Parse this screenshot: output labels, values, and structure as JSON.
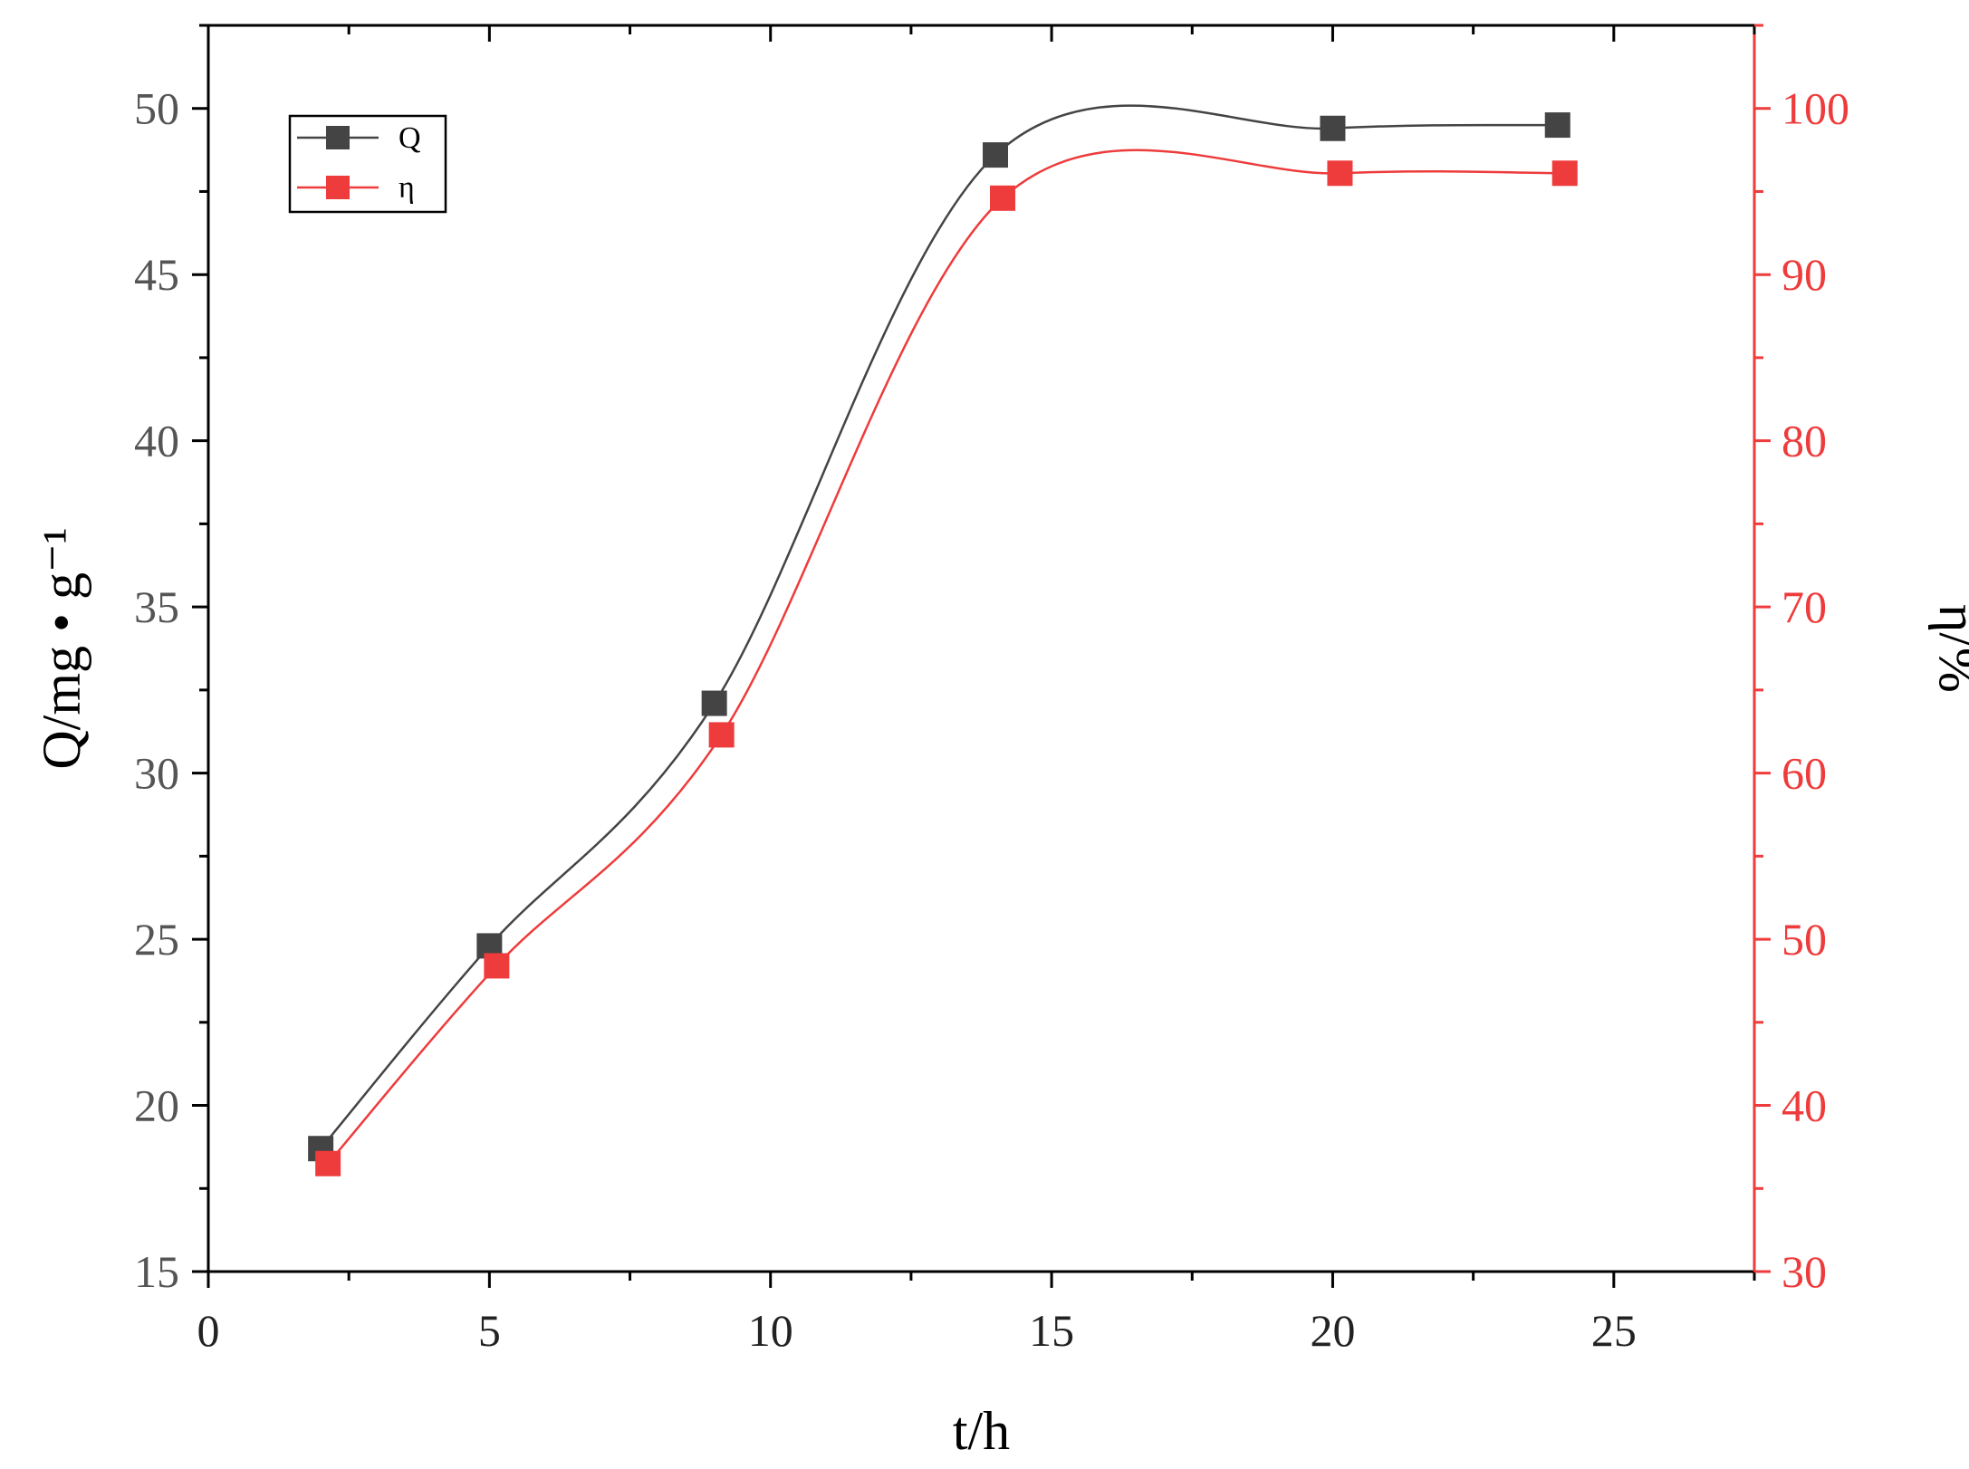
{
  "chart_data": {
    "type": "line",
    "title": "",
    "xlabel": "t/h",
    "ylabel_left": "Q/mg • g⁻¹",
    "ylabel_right": "η/%",
    "xlim": [
      0,
      27.5
    ],
    "ylim_left": [
      15,
      52.5
    ],
    "ylim_right": [
      30,
      105
    ],
    "x_ticks": [
      0,
      5,
      10,
      15,
      20,
      25
    ],
    "x_tick_labels": [
      "0",
      "5",
      "10",
      "15",
      "20",
      "25"
    ],
    "y_left_ticks": [
      15,
      20,
      25,
      30,
      35,
      40,
      45,
      50
    ],
    "y_left_tick_labels": [
      "15",
      "20",
      "25",
      "30",
      "35",
      "40",
      "45",
      "50"
    ],
    "y_right_ticks": [
      30,
      40,
      50,
      60,
      70,
      80,
      90,
      100
    ],
    "y_right_tick_labels": [
      "30",
      "40",
      "50",
      "60",
      "70",
      "80",
      "90",
      "100"
    ],
    "legend_position": "top-left",
    "grid": false,
    "smooth": true,
    "series": [
      {
        "name": "Q",
        "axis": "left",
        "color": "#444444",
        "marker": "square",
        "x": [
          2,
          5,
          9,
          14,
          20,
          24
        ],
        "y": [
          18.7,
          24.8,
          32.1,
          48.6,
          49.4,
          49.5
        ]
      },
      {
        "name": "η",
        "axis": "right",
        "color": "#ee3b3b",
        "marker": "square",
        "x": [
          2,
          5,
          9,
          14,
          20,
          24
        ],
        "y": [
          36.5,
          48.4,
          62.3,
          94.6,
          96.1,
          96.1
        ]
      }
    ]
  }
}
